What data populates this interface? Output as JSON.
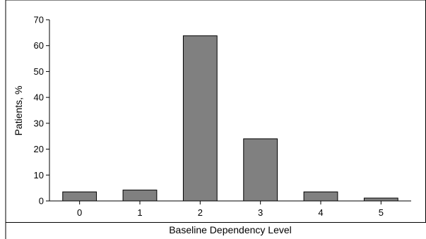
{
  "chart_data": {
    "type": "bar",
    "categories": [
      "0",
      "1",
      "2",
      "3",
      "4",
      "5"
    ],
    "values": [
      3.5,
      4.2,
      63.8,
      24.0,
      3.5,
      1.1
    ],
    "xlabel": "Baseline Dependency Level",
    "ylabel": "Patients, %",
    "ylim": [
      0,
      70
    ],
    "yticks": [
      "0",
      "10",
      "20",
      "30",
      "40",
      "50",
      "60",
      "70"
    ],
    "bar_color": "#808080",
    "grid": false
  }
}
